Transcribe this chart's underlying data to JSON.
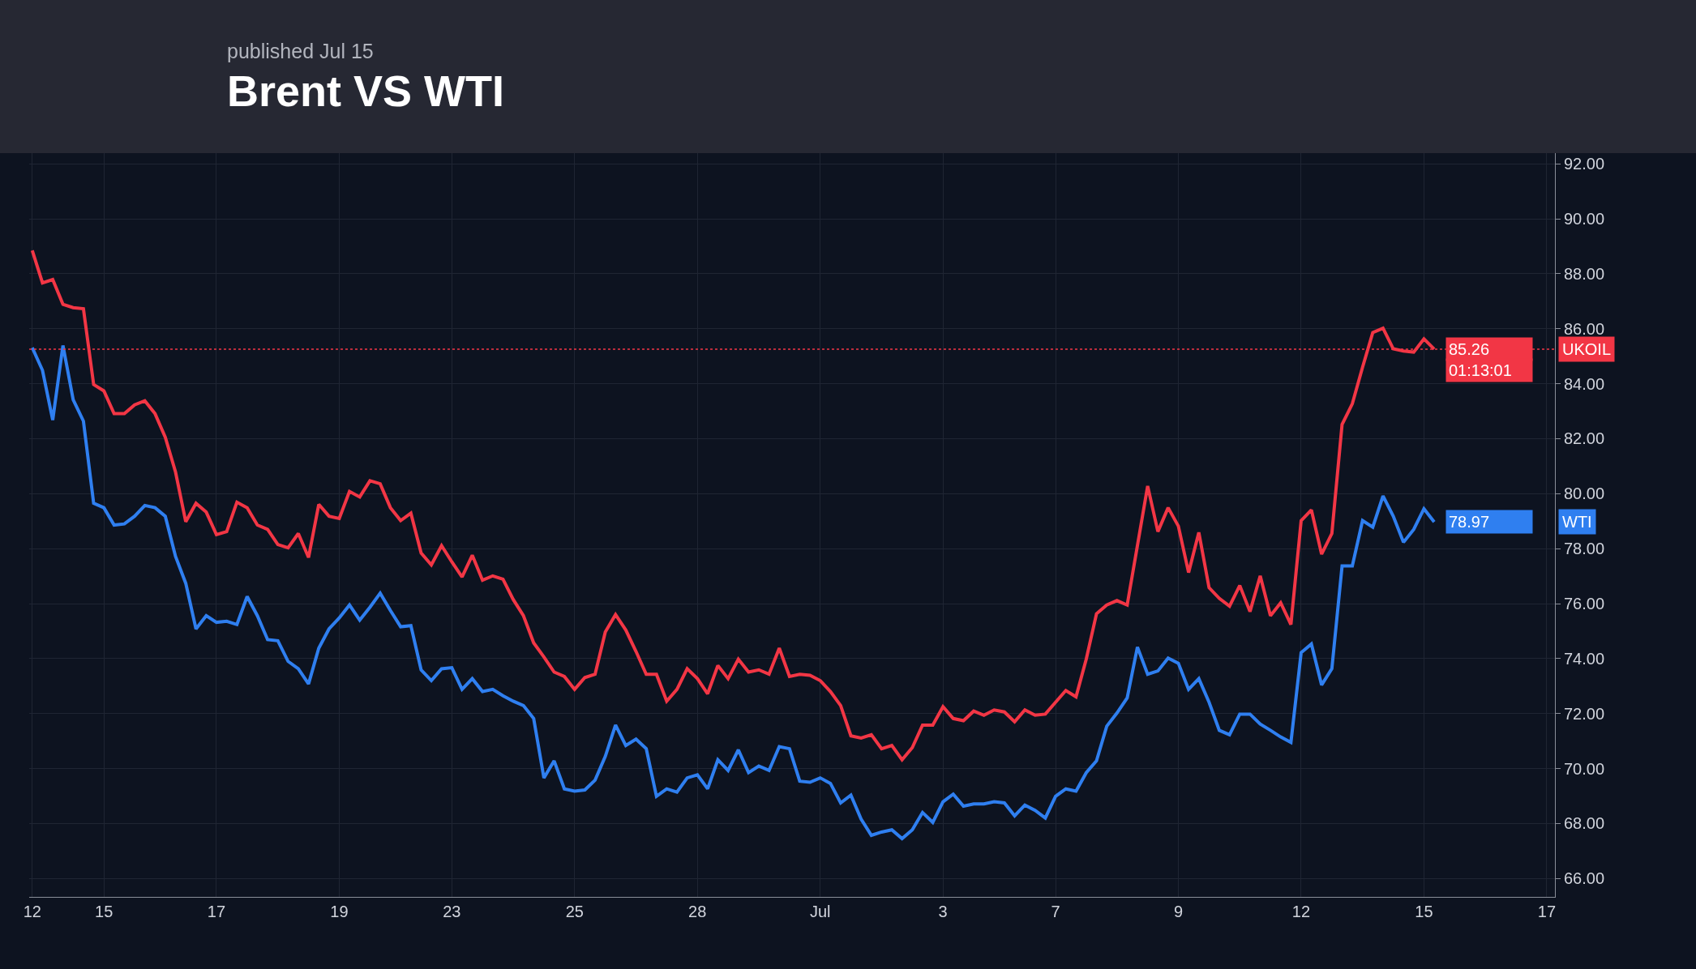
{
  "chart_data": {
    "type": "line",
    "title": "Brent VS WTI",
    "subtitle": "published Jul 15",
    "categories": [
      "12",
      null,
      null,
      null,
      null,
      null,
      null,
      "15",
      null,
      null,
      null,
      null,
      null,
      null,
      null,
      null,
      null,
      null,
      "17",
      null,
      null,
      null,
      null,
      null,
      null,
      null,
      null,
      null,
      null,
      null,
      "19",
      null,
      null,
      null,
      null,
      null,
      null,
      null,
      null,
      null,
      null,
      "23",
      null,
      null,
      null,
      null,
      null,
      null,
      null,
      null,
      null,
      null,
      null,
      "25",
      null,
      null,
      null,
      null,
      null,
      null,
      null,
      null,
      null,
      null,
      null,
      "28",
      null,
      null,
      null,
      null,
      null,
      null,
      null,
      null,
      null,
      null,
      null,
      "Jul",
      null,
      null,
      null,
      null,
      null,
      null,
      null,
      null,
      null,
      null,
      null,
      "3",
      null,
      null,
      null,
      null,
      null,
      null,
      null,
      null,
      null,
      null,
      "7",
      null,
      null,
      null,
      null,
      null,
      null,
      null,
      null,
      null,
      null,
      null,
      "9",
      null,
      null,
      null,
      null,
      null,
      null,
      null,
      null,
      null,
      null,
      null,
      "12",
      null,
      null,
      null,
      null,
      null,
      null,
      null,
      null,
      null,
      null,
      null,
      "15",
      null,
      null,
      null,
      null,
      null,
      null,
      null,
      null,
      null,
      null,
      null,
      "17"
    ],
    "series": [
      {
        "name": "UKOIL",
        "color": "#f23645",
        "values": [
          88.85,
          87.67,
          87.79,
          86.89,
          86.77,
          86.73,
          83.97,
          83.74,
          82.91,
          82.91,
          83.23,
          83.38,
          82.91,
          82.05,
          80.79,
          78.98,
          79.65,
          79.33,
          78.51,
          78.62,
          79.69,
          79.49,
          78.86,
          78.7,
          78.15,
          78.03,
          78.55,
          77.68,
          79.61,
          79.18,
          79.1,
          80.08,
          79.88,
          80.47,
          80.36,
          79.49,
          79.02,
          79.29,
          77.84,
          77.41,
          78.11,
          77.52,
          76.97,
          77.76,
          76.85,
          77.01,
          76.89,
          76.15,
          75.56,
          74.57,
          74.06,
          73.51,
          73.35,
          72.88,
          73.31,
          73.43,
          74.97,
          75.6,
          75.04,
          74.26,
          73.43,
          73.43,
          72.45,
          72.88,
          73.63,
          73.27,
          72.72,
          73.75,
          73.27,
          73.98,
          73.51,
          73.59,
          73.43,
          74.38,
          73.35,
          73.43,
          73.39,
          73.2,
          72.8,
          72.29,
          71.19,
          71.11,
          71.23,
          70.72,
          70.84,
          70.32,
          70.76,
          71.58,
          71.58,
          72.25,
          71.82,
          71.74,
          72.09,
          71.94,
          72.13,
          72.06,
          71.7,
          72.13,
          71.94,
          71.98,
          72.41,
          72.84,
          72.61,
          73.98,
          75.63,
          75.95,
          76.11,
          75.95,
          78.11,
          80.28,
          78.62,
          79.49,
          78.82,
          77.13,
          78.59,
          76.58,
          76.19,
          75.91,
          76.66,
          75.71,
          77.01,
          75.56,
          76.03,
          75.24,
          79.02,
          79.41,
          77.8,
          78.55,
          82.52,
          83.27,
          84.6,
          85.86,
          86.02,
          85.27,
          85.19,
          85.15,
          85.63,
          85.26,
          null,
          null,
          null,
          null,
          null,
          null,
          null,
          null,
          null,
          null,
          null
        ],
        "value_labels": [
          null,
          null,
          null,
          null,
          null,
          null,
          null,
          null,
          null,
          null,
          null,
          null,
          null,
          null,
          null,
          null,
          null,
          null,
          null,
          null,
          null,
          null,
          null,
          null,
          null,
          null,
          null,
          null,
          null,
          null,
          null,
          null,
          null,
          null,
          null,
          null,
          null,
          null,
          null,
          null,
          null,
          null,
          null,
          null,
          null,
          null,
          null,
          null,
          null,
          null,
          null,
          null,
          null,
          null,
          null,
          null,
          null,
          null,
          null,
          null,
          null,
          null,
          null,
          null,
          null,
          null,
          null,
          null,
          null,
          null,
          null,
          null,
          null,
          null,
          null,
          null,
          null,
          null,
          null,
          null,
          null,
          null,
          null,
          null,
          null,
          null,
          null,
          null,
          null,
          null,
          null,
          null,
          null,
          null,
          null,
          null,
          null,
          null,
          null,
          null,
          null,
          null,
          null,
          null,
          null,
          null,
          null,
          null,
          null,
          null,
          null,
          null,
          null,
          null,
          null,
          null,
          null,
          null,
          null,
          null,
          null,
          null,
          null,
          null,
          null,
          null,
          null,
          null,
          null,
          null,
          null,
          null,
          null,
          null,
          null,
          null,
          null,
          "85.26",
          null,
          null,
          null,
          null,
          null,
          null,
          null,
          null,
          null,
          null,
          null
        ]
      },
      {
        "name": "WTI",
        "color": "#2f7ff0",
        "values": [
          85.31,
          84.49,
          82.68,
          85.39,
          83.42,
          82.64,
          79.65,
          79.49,
          78.86,
          78.9,
          79.18,
          79.57,
          79.49,
          79.18,
          77.72,
          76.74,
          75.08,
          75.56,
          75.32,
          75.36,
          75.24,
          76.26,
          75.56,
          74.69,
          74.65,
          73.9,
          73.63,
          73.08,
          74.38,
          75.08,
          75.48,
          75.95,
          75.4,
          75.87,
          76.38,
          75.75,
          75.16,
          75.2,
          73.59,
          73.2,
          73.63,
          73.67,
          72.88,
          73.27,
          72.8,
          72.88,
          72.65,
          72.45,
          72.29,
          71.82,
          69.66,
          70.28,
          69.26,
          69.18,
          69.22,
          69.58,
          70.44,
          71.58,
          70.84,
          71.07,
          70.72,
          68.99,
          69.26,
          69.14,
          69.66,
          69.77,
          69.26,
          70.32,
          69.93,
          70.68,
          69.85,
          70.09,
          69.93,
          70.8,
          70.72,
          69.54,
          69.5,
          69.66,
          69.46,
          68.75,
          69.03,
          68.16,
          67.57,
          67.69,
          67.77,
          67.45,
          67.77,
          68.4,
          68.04,
          68.79,
          69.07,
          68.63,
          68.71,
          68.71,
          68.79,
          68.75,
          68.28,
          68.67,
          68.48,
          68.2,
          68.99,
          69.26,
          69.18,
          69.85,
          70.28,
          71.54,
          72.02,
          72.57,
          74.42,
          73.43,
          73.55,
          74.02,
          73.83,
          72.88,
          73.27,
          72.41,
          71.39,
          71.23,
          71.98,
          71.98,
          71.62,
          71.39,
          71.15,
          70.95,
          74.22,
          74.53,
          73.04,
          73.63,
          77.37,
          77.37,
          79.02,
          78.78,
          79.92,
          79.18,
          78.23,
          78.7,
          79.45,
          78.97,
          null,
          null,
          null,
          null,
          null,
          null,
          null,
          null,
          null,
          null,
          null
        ],
        "value_labels": [
          null,
          null,
          null,
          null,
          null,
          null,
          null,
          null,
          null,
          null,
          null,
          null,
          null,
          null,
          null,
          null,
          null,
          null,
          null,
          null,
          null,
          null,
          null,
          null,
          null,
          null,
          null,
          null,
          null,
          null,
          null,
          null,
          null,
          null,
          null,
          null,
          null,
          null,
          null,
          null,
          null,
          null,
          null,
          null,
          null,
          null,
          null,
          null,
          null,
          null,
          null,
          null,
          null,
          null,
          null,
          null,
          null,
          null,
          null,
          null,
          null,
          null,
          null,
          null,
          null,
          null,
          null,
          null,
          null,
          null,
          null,
          null,
          null,
          null,
          null,
          null,
          null,
          null,
          null,
          null,
          null,
          null,
          null,
          null,
          null,
          null,
          null,
          null,
          null,
          null,
          null,
          null,
          null,
          null,
          null,
          null,
          null,
          null,
          null,
          null,
          null,
          null,
          null,
          null,
          null,
          null,
          null,
          null,
          null,
          null,
          null,
          null,
          null,
          null,
          null,
          null,
          null,
          null,
          null,
          null,
          null,
          null,
          null,
          null,
          null,
          null,
          null,
          null,
          null,
          null,
          null,
          null,
          null,
          null,
          null,
          null,
          null,
          "78.97",
          null,
          null,
          null,
          null,
          null,
          null,
          null,
          null,
          null,
          null,
          null
        ]
      }
    ],
    "ylim": [
      65.33,
      92.39
    ],
    "yticks": [
      {
        "value": 66,
        "label": "66.00"
      },
      {
        "value": 68,
        "label": "68.00"
      },
      {
        "value": 70,
        "label": "70.00"
      },
      {
        "value": 72,
        "label": "72.00"
      },
      {
        "value": 74,
        "label": "74.00"
      },
      {
        "value": 76,
        "label": "76.00"
      },
      {
        "value": 78,
        "label": "78.00"
      },
      {
        "value": 80,
        "label": "80.00"
      },
      {
        "value": 82,
        "label": "82.00"
      },
      {
        "value": 84,
        "label": "84.00"
      },
      {
        "value": 86,
        "label": "86.00"
      },
      {
        "value": 88,
        "label": "88.00"
      },
      {
        "value": 90,
        "label": "90.00"
      },
      {
        "value": 92,
        "label": "92.00"
      }
    ],
    "ref_lines": [
      {
        "axis": "y",
        "value": 85.26,
        "color": "#f23645",
        "line_style": "dotted"
      }
    ],
    "annotations": [
      "01:13:01"
    ],
    "grid": true,
    "legend": false,
    "marker": "none",
    "line_style": "solid"
  }
}
